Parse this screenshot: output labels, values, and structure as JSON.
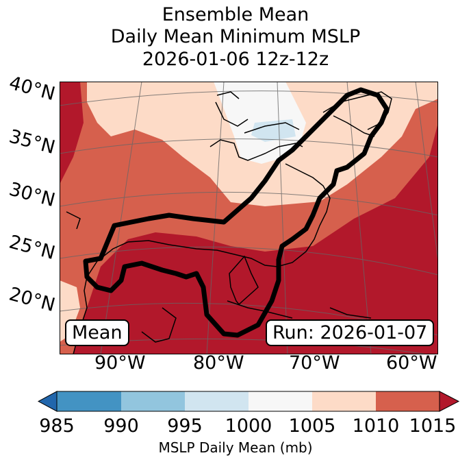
{
  "title": {
    "line1": "Ensemble Mean",
    "line2": "Daily Mean Minimum MSLP",
    "line3": "2026-01-06 12z-12z"
  },
  "map": {
    "lat_labels": [
      "40°N",
      "35°N",
      "30°N",
      "25°N",
      "20°N"
    ],
    "lon_labels": [
      "90°W",
      "80°W",
      "70°W",
      "60°W"
    ],
    "mean_label": "Mean",
    "run_label": "Run: 2026-01-07"
  },
  "colorbar": {
    "ticks": [
      "985",
      "990",
      "995",
      "1000",
      "1005",
      "1010",
      "1015"
    ],
    "colors": [
      "#2166ac",
      "#4393c3",
      "#92c5de",
      "#d1e5f0",
      "#f7f7f7",
      "#fddbc7",
      "#d6604d",
      "#b2182b"
    ],
    "label": "MSLP Daily Mean (mb)"
  }
}
